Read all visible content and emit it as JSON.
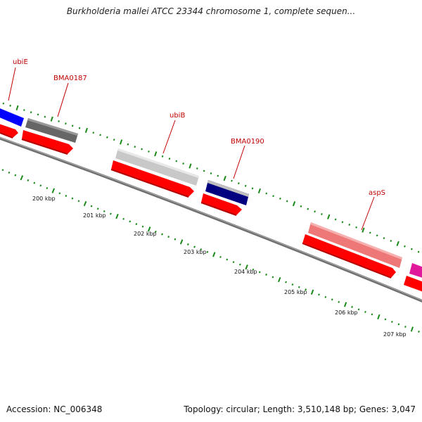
{
  "title": "Burkholderia mallei ATCC 23344 chromosome 1, complete sequen...",
  "footer": {
    "accession": "Accession: NC_006348",
    "stats": "Topology: circular; Length: 3,510,148 bp; Genes: 3,047"
  },
  "colors": {
    "tick": "#1a8a1a",
    "label": "#c00000",
    "backbone": "#808080",
    "cds_arrow": "#ff0000"
  },
  "scale": {
    "tick_labels": [
      "200 kbp",
      "201 kbp",
      "202 kbp",
      "203 kbp",
      "204 kbp",
      "205 kbp",
      "206 kbp",
      "207 kbp"
    ]
  },
  "genes": [
    {
      "name": "ubiE",
      "color": "#0000ff"
    },
    {
      "name": "BMA0187",
      "color": "#666666"
    },
    {
      "name": "ubiB",
      "color": "#c8c8c8"
    },
    {
      "name": "BMA0190",
      "color": "#000080"
    },
    {
      "name": "aspS",
      "color": "#ee7777"
    },
    {
      "name": "",
      "color": "#e0189a"
    }
  ]
}
